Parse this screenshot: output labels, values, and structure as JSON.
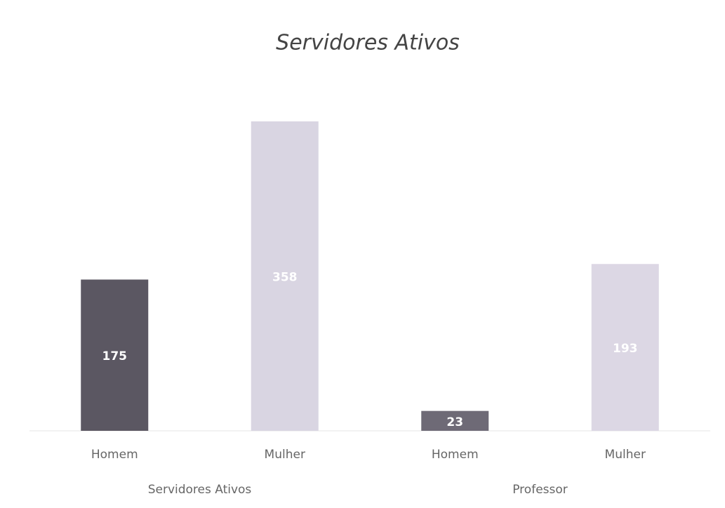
{
  "chart_data": {
    "type": "bar",
    "title": "Servidores Ativos",
    "categories": [
      "Homem",
      "Mulher",
      "Homem",
      "Mulher"
    ],
    "groups": [
      "Servidores Ativos",
      "Professor"
    ],
    "values": [
      175,
      358,
      23,
      193
    ],
    "colors": [
      "#5b5762",
      "#d9d5e2",
      "#6e6a76",
      "#dcd7e4"
    ]
  }
}
